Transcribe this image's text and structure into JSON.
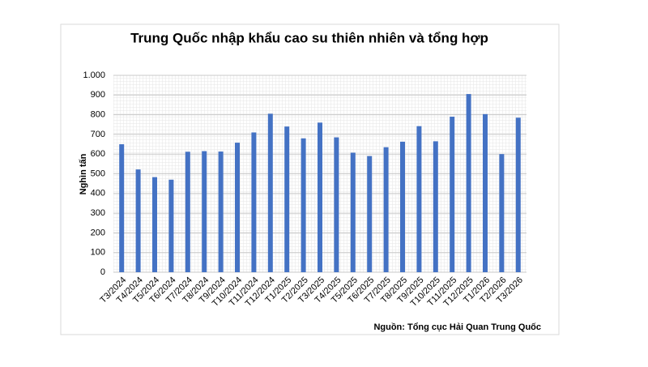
{
  "chart_data": {
    "type": "bar",
    "title": "Trung Quốc nhập khẩu cao su thiên nhiên và tổng hợp",
    "y_label": "Nghìn tấn",
    "source": "Nguồn: Tổng cục Hải Quan Trung Quốc",
    "categories": [
      "T3/2024",
      "T4/2024",
      "T5/2024",
      "T6/2024",
      "T7/2024",
      "T8/2024",
      "T9/2024",
      "T10/2024",
      "T11/2024",
      "T12/2024",
      "T1/2025",
      "T2/2025",
      "T3/2025",
      "T4/2025",
      "T5/2025",
      "T6/2025",
      "T7/2025",
      "T8/2025",
      "T9/2025",
      "T10/2025",
      "T11/2025",
      "T12/2025",
      "T1/2026",
      "T2/2026",
      "T3/2026"
    ],
    "values": [
      650,
      522,
      483,
      470,
      612,
      615,
      613,
      658,
      710,
      805,
      740,
      680,
      760,
      685,
      607,
      590,
      635,
      663,
      742,
      665,
      790,
      905,
      803,
      600,
      785
    ],
    "color": "#4472c4",
    "ylim": [
      0,
      1000
    ],
    "yticks": [
      0,
      100,
      200,
      300,
      400,
      500,
      600,
      700,
      800,
      900,
      {
        "value": 1000,
        "label": "1.000"
      }
    ],
    "grid": true
  }
}
